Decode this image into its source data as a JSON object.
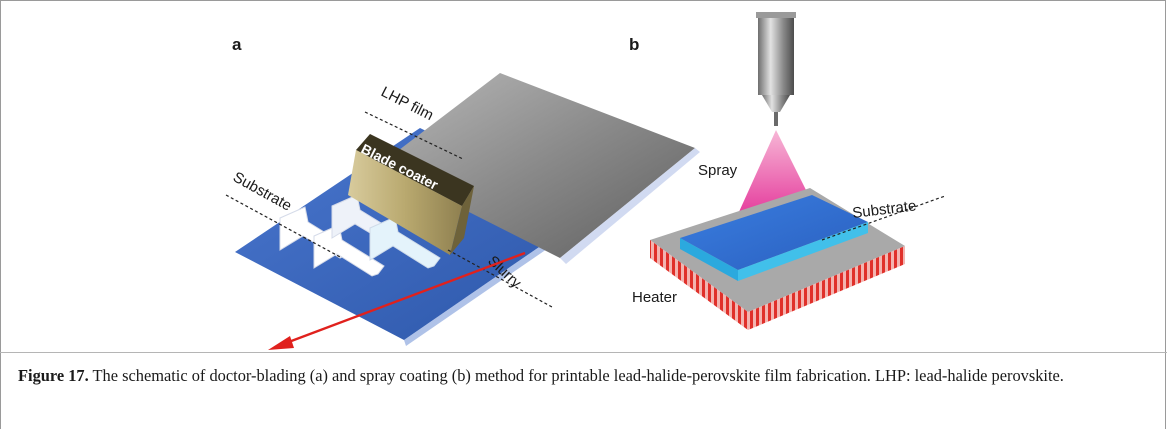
{
  "figure": {
    "panel_a": {
      "letter": "a",
      "labels": {
        "film": "LHP film",
        "blade": "Blade coater",
        "substrate": "Substrate",
        "slurry": "Slurry"
      }
    },
    "panel_b": {
      "letter": "b",
      "labels": {
        "spray": "Spray",
        "substrate": "Substrate",
        "heater": "Heater"
      }
    },
    "colors": {
      "substrate_blue": "#3a67c0",
      "film_grey": "#8c8c8c",
      "arrow_red": "#e0211d",
      "spray_pink": "#ee4fa8",
      "heater_red": "#e0302a",
      "plate_blue": "#2f6fd0"
    }
  },
  "caption": {
    "label": "Figure 17.",
    "text": " The schematic of doctor-blading (a) and spray coating (b) method for printable lead-halide-perovskite film fabrication. LHP: lead-halide perovskite."
  }
}
